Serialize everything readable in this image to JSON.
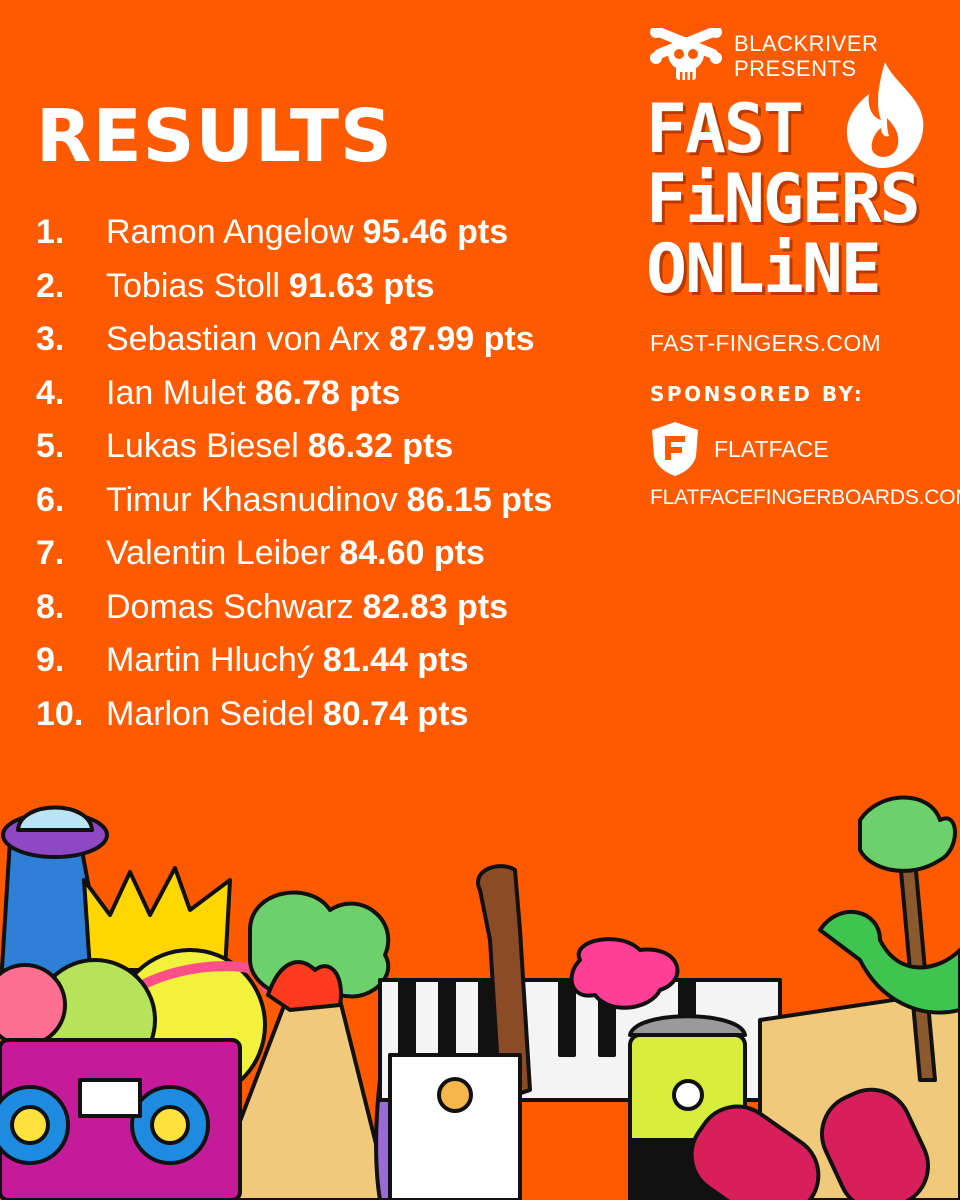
{
  "header": {
    "title": "RESULTS"
  },
  "results": [
    {
      "rank": "1.",
      "name": "Ramon Angelow",
      "score": "95.46 pts"
    },
    {
      "rank": "2.",
      "name": "Tobias Stoll",
      "score": "91.63 pts"
    },
    {
      "rank": "3.",
      "name": "Sebastian von Arx",
      "score": "87.99 pts"
    },
    {
      "rank": "4.",
      "name": "Ian Mulet",
      "score": "86.78 pts"
    },
    {
      "rank": "5.",
      "name": "Lukas Biesel",
      "score": "86.32 pts"
    },
    {
      "rank": "6.",
      "name": "Timur Khasnudinov",
      "score": "86.15 pts"
    },
    {
      "rank": "7.",
      "name": "Valentin Leiber",
      "score": "84.60 pts"
    },
    {
      "rank": "8.",
      "name": "Domas Schwarz",
      "score": "82.83 pts"
    },
    {
      "rank": "9.",
      "name": "Martin Hluchý",
      "score": "81.44 pts"
    },
    {
      "rank": "10.",
      "name": "Marlon Seidel",
      "score": "80.74 pts"
    }
  ],
  "branding": {
    "presenter_line1": "BLACKRIVER",
    "presenter_line2": "PRESENTS",
    "presenter_icon": "skull-crossbones-icon",
    "logo_line1": "FAST",
    "logo_line2": "FiNGERS",
    "logo_line3": "ONLiNE",
    "logo_icon": "flame-icon",
    "site_url": "FAST-FINGERS.COM",
    "sponsored_label": "SPONSORED BY:",
    "sponsor_name": "FLATFACE",
    "sponsor_icon": "flatface-shield-icon",
    "sponsor_url": "FLATFACEFINGERBOARDS.COM"
  },
  "colors": {
    "background": "#ff5a00",
    "text": "#ffffff"
  }
}
